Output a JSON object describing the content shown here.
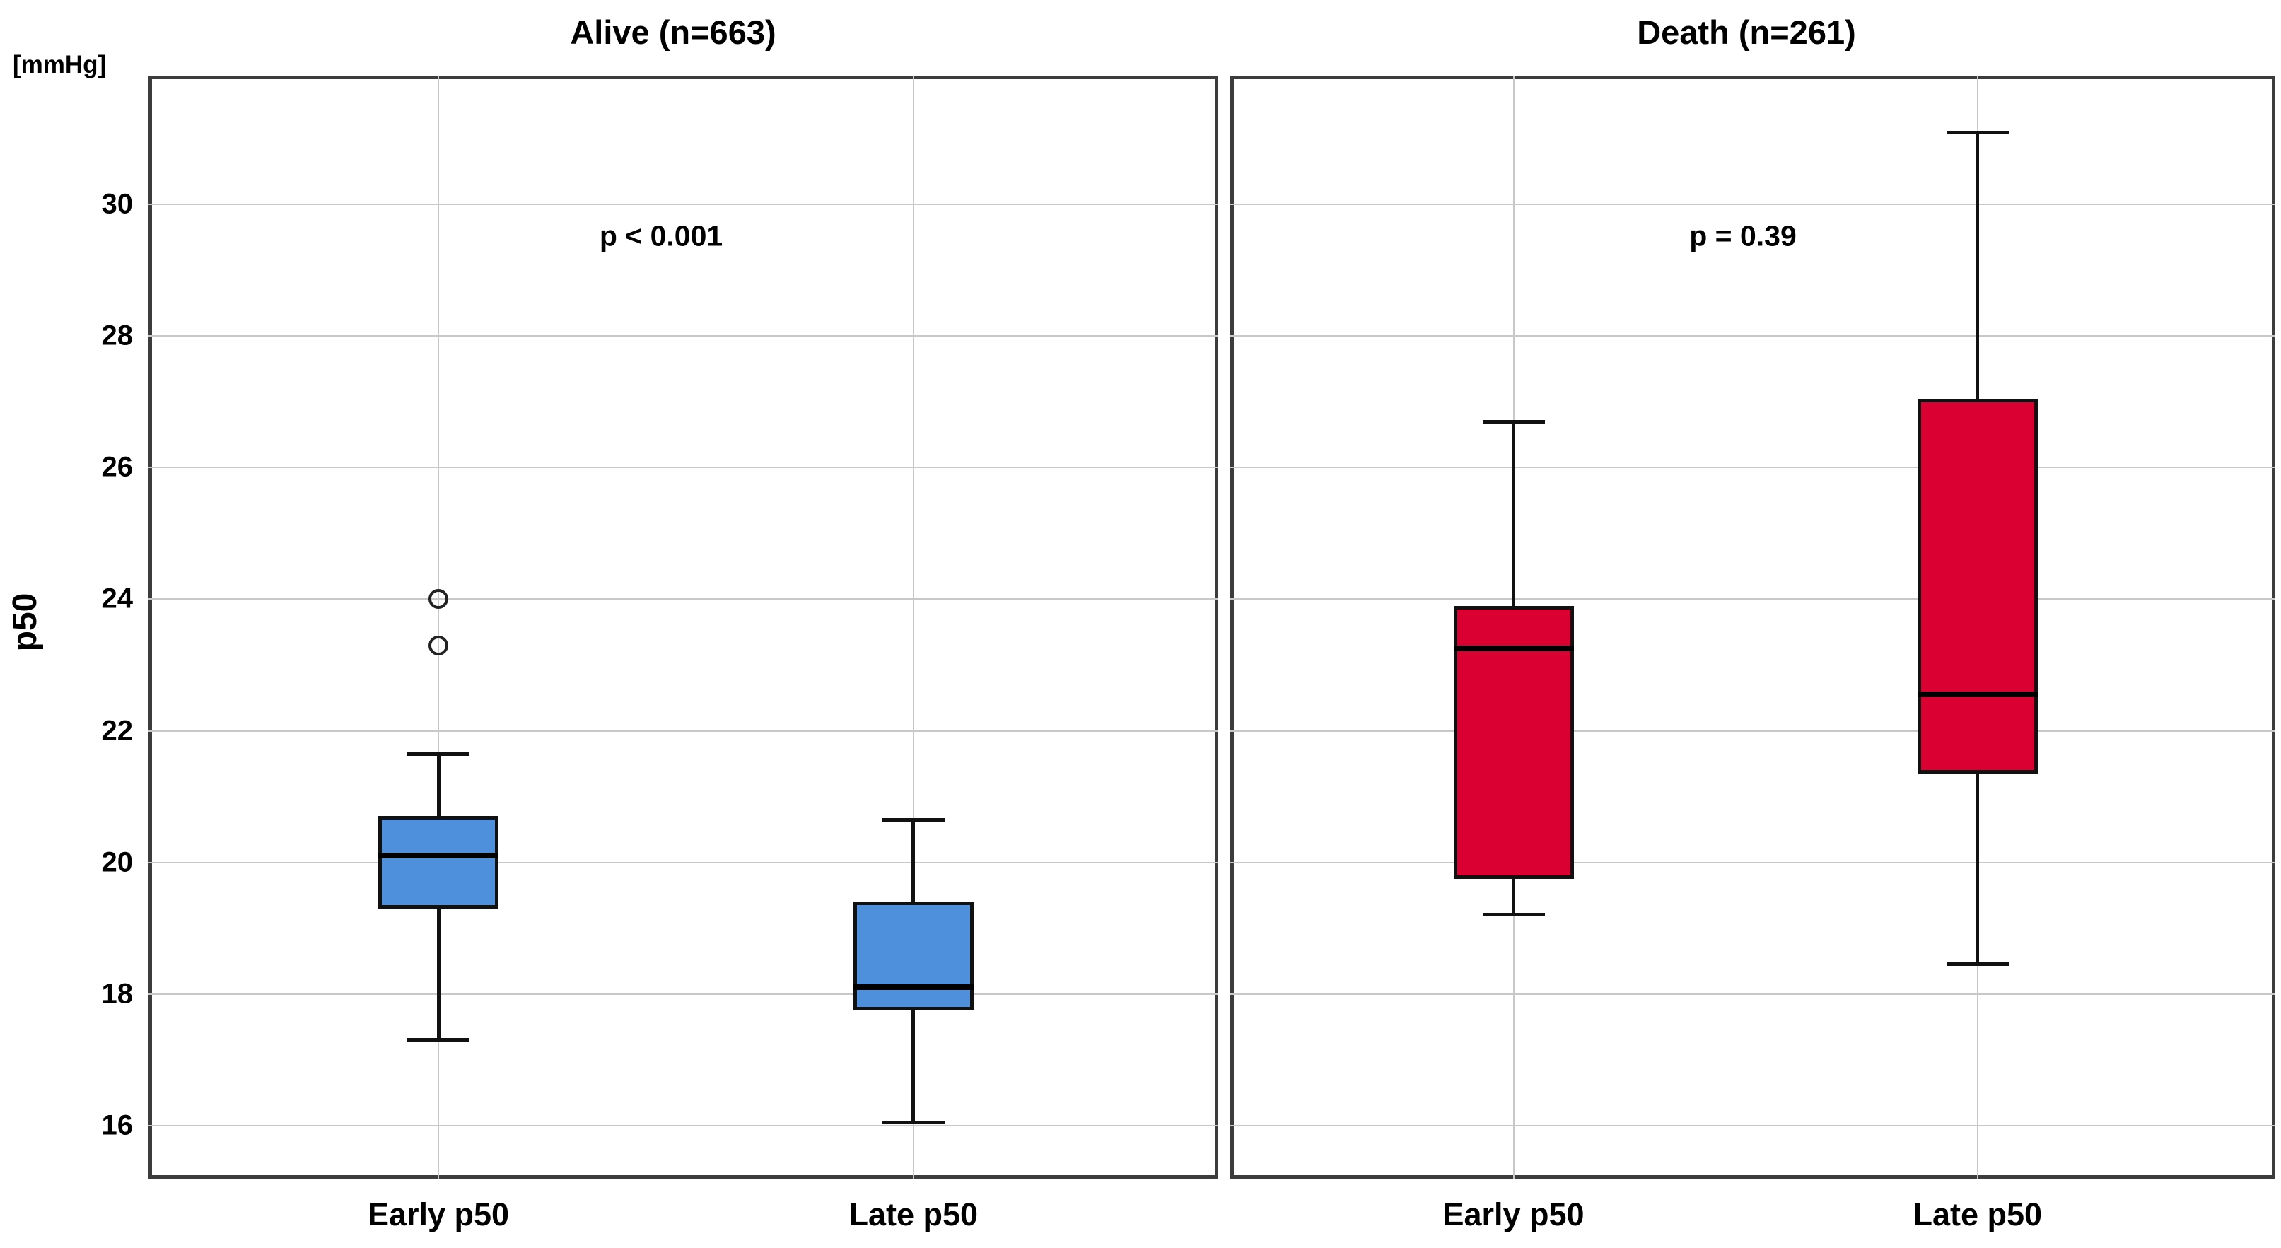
{
  "chart_data": {
    "type": "boxplot",
    "unit_label": "[mmHg]",
    "ylabel": "p50",
    "ylim": [
      15.19,
      31.96
    ],
    "yticks": [
      16,
      18,
      20,
      22,
      24,
      26,
      28,
      30
    ],
    "grid": "on",
    "panels": [
      {
        "title": "Alive (n=663)",
        "p_label": "p < 0.001",
        "box_color": "#4E90DC",
        "categories": [
          "Early p50",
          "Late p50"
        ],
        "boxes": [
          {
            "label": "Early p50",
            "whisker_low": 17.3,
            "q1": 19.3,
            "median": 20.1,
            "q3": 20.7,
            "whisker_high": 21.65,
            "outliers": [
              23.3,
              24.0
            ]
          },
          {
            "label": "Late p50",
            "whisker_low": 16.05,
            "q1": 17.75,
            "median": 18.1,
            "q3": 19.4,
            "whisker_high": 20.65,
            "outliers": []
          }
        ]
      },
      {
        "title": "Death (n=261)",
        "p_label": "p = 0.39",
        "box_color": "#DB0032",
        "categories": [
          "Early p50",
          "Late p50"
        ],
        "boxes": [
          {
            "label": "Early p50",
            "whisker_low": 19.2,
            "q1": 19.75,
            "median": 23.25,
            "q3": 23.9,
            "whisker_high": 26.7,
            "outliers": []
          },
          {
            "label": "Late p50",
            "whisker_low": 18.45,
            "q1": 21.35,
            "median": 22.55,
            "q3": 27.05,
            "whisker_high": 31.1,
            "outliers": []
          }
        ]
      }
    ]
  }
}
